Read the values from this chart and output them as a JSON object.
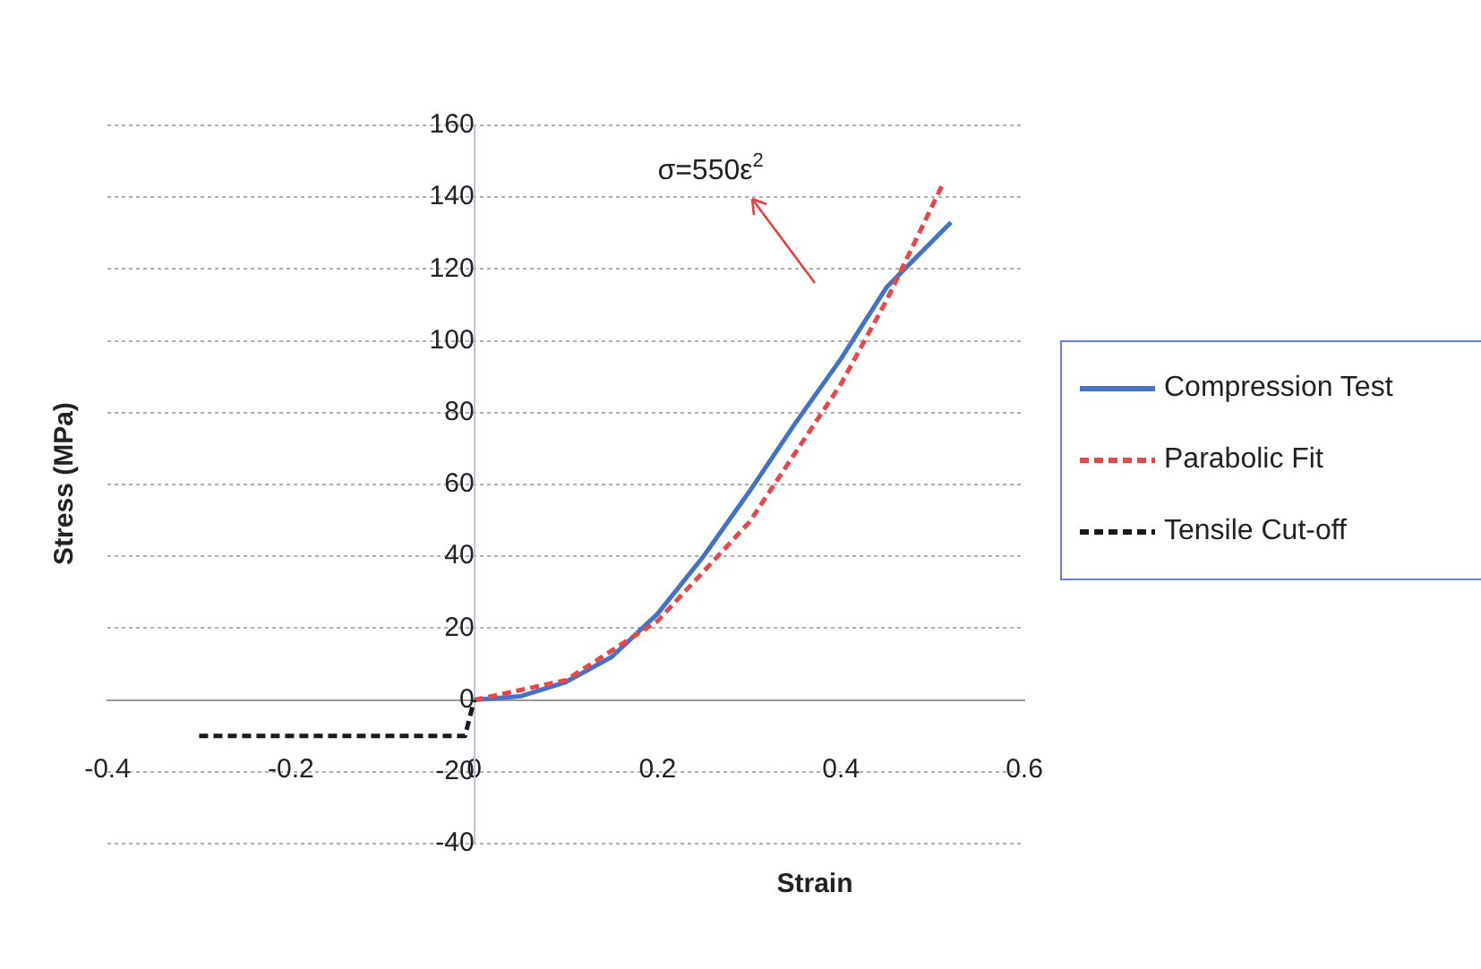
{
  "chart_data": {
    "type": "line",
    "xlabel": "Strain",
    "ylabel": "Stress (MPa)",
    "xlim": [
      -0.4,
      0.6
    ],
    "xticks": [
      -0.4,
      -0.2,
      0,
      0.2,
      0.4,
      0.6
    ],
    "ylim": [
      -40,
      160
    ],
    "yticks": [
      -40,
      -20,
      0,
      20,
      40,
      60,
      80,
      100,
      120,
      140,
      160
    ],
    "grid": "y",
    "legend": "right",
    "marker": "none",
    "annotations": [
      "σ=550ε$^{2}$"
    ],
    "series": [
      {
        "name": "Compression Test",
        "color": "#4472c4",
        "line_style": "solid",
        "x": [
          0,
          0.05,
          0.1,
          0.15,
          0.2,
          0.25,
          0.3,
          0.35,
          0.4,
          0.45,
          0.52
        ],
        "values": [
          0,
          1,
          5,
          12,
          24,
          40,
          58,
          77,
          95,
          115,
          133
        ]
      },
      {
        "name": "Parabolic Fit",
        "color": "#e8474a",
        "line_style": "dashed",
        "x": [
          0,
          0.1,
          0.2,
          0.3,
          0.4,
          0.45,
          0.51
        ],
        "values": [
          0,
          5.5,
          22,
          49.5,
          88,
          111.4,
          143.1
        ]
      },
      {
        "name": "Tensile Cut-off",
        "color": "#1a1a1a",
        "line_style": "dashed",
        "x": [
          -0.3,
          -0.01,
          0
        ],
        "values": [
          -10,
          -10,
          0
        ]
      }
    ]
  }
}
